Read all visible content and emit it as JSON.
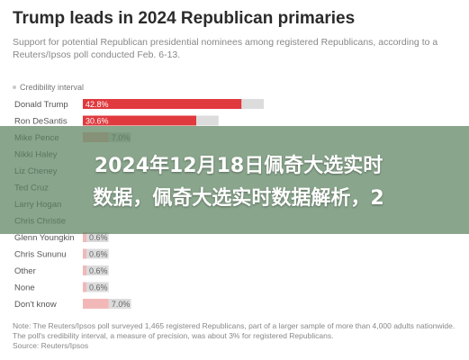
{
  "header": {
    "title": "Trump leads in 2024 Republican primaries",
    "subtitle": "Support for potential Republican presidential nominees among registered Republicans, according to a Reuters/Ipsos poll conducted Feb. 6-13.",
    "legend_label": "Credibility interval"
  },
  "colors": {
    "highlight": "#e0393e",
    "bar": "#f2b8b8",
    "credibility": "#dcdcdc",
    "banner": "#5c8260"
  },
  "chart_data": {
    "type": "bar",
    "orientation": "horizontal",
    "categories": [
      "Donald Trump",
      "Ron DeSantis",
      "Mike Pence",
      "Nikki Haley",
      "Liz Cheney",
      "Ted Cruz",
      "Larry Hogan",
      "Chris Christie",
      "Glenn Youngkin",
      "Chris Sununu",
      "Other",
      "None",
      "Don't know"
    ],
    "values": [
      42.8,
      30.6,
      7.0,
      null,
      null,
      null,
      null,
      null,
      0.6,
      0.6,
      0.6,
      0.6,
      7.0
    ],
    "value_labels": [
      "42.8%",
      "30.6%",
      "7.0%",
      "",
      "",
      "",
      "",
      "",
      "0.6%",
      "0.6%",
      "0.6%",
      "0.6%",
      "7.0%"
    ],
    "credibility_interval_pct": 3,
    "highlighted": [
      "Donald Trump",
      "Ron DeSantis"
    ],
    "xlim": [
      0,
      100
    ],
    "title": "Trump leads in 2024 Republican primaries",
    "xlabel": "",
    "ylabel": ""
  },
  "note": {
    "text": "Note: The Reuters/Ipsos poll surveyed 1,465 registered Republicans, part of a larger sample of more than 4,000 adults nationwide. The poll's credibility interval, a measure of precision, was about 3% for registered Republicans.",
    "source": "Source: Reuters/Ipsos"
  },
  "overlay": {
    "line1": "2024年12月18日佩奇大选实时",
    "line2": "数据，佩奇大选实时数据解析，2"
  }
}
